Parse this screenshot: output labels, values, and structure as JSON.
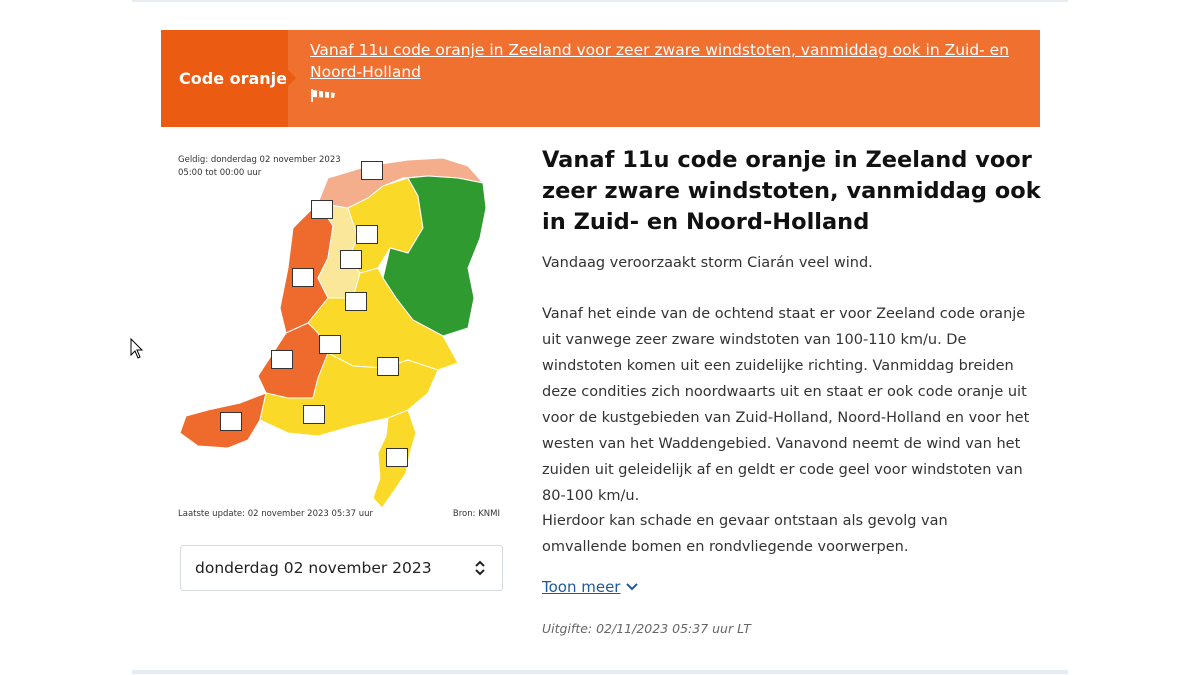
{
  "banner": {
    "tag": "Code oranje",
    "link": "Vanaf 11u code oranje in Zeeland voor zeer zware windstoten, vanmiddag ook in Zuid- en Noord-Holland",
    "icon": "windsock-icon"
  },
  "map": {
    "valid_line1": "Geldig: donderdag 02 november 2023",
    "valid_line2": "05:00 tot 00:00 uur",
    "update": "Laatste update: 02 november 2023 05:37 uur",
    "source": "Bron: KNMI",
    "colors": {
      "orange": "#ef6a2d",
      "light_orange": "#f5ae8c",
      "yellow": "#fbd928",
      "light_yellow": "#fae79a",
      "green": "#2f9a2f"
    }
  },
  "date_select": {
    "value": "donderdag 02 november 2023"
  },
  "article": {
    "headline": "Vanaf 11u code oranje in Zeeland voor zeer zware windstoten, vanmiddag ook in Zuid- en Noord-Holland",
    "p1": "Vandaag veroorzaakt storm Ciarán veel wind.",
    "p2": "Vanaf het einde van de ochtend staat er voor Zeeland code oranje uit vanwege zeer zware windstoten van 100-110 km/u. De windstoten komen uit een zuidelijke richting. Vanmiddag breiden deze condities zich noordwaarts uit en staat er ook code oranje uit voor de kustgebieden van Zuid-Holland, Noord-Holland en voor het westen van het Waddengebied. Vanavond neemt de wind van het zuiden uit geleidelijk af en geldt er code geel voor windstoten van 80-100 km/u.",
    "p3": "Hierdoor kan schade en gevaar ontstaan als gevolg van omvallende bomen en rondvliegende voorwerpen.",
    "more": "Toon meer",
    "issued": "Uitgifte: 02/11/2023 05:37 uur LT"
  }
}
